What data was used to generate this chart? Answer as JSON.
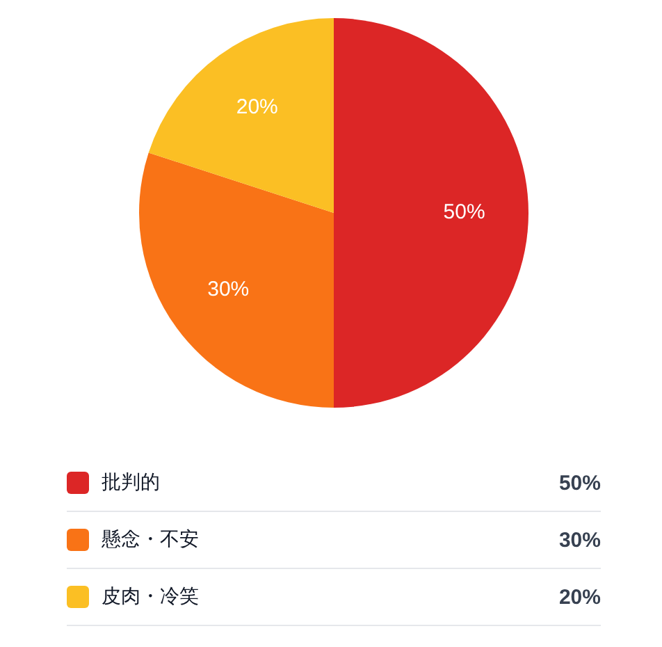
{
  "chart_data": {
    "type": "pie",
    "categories": [
      "批判的",
      "懸念・不安",
      "皮肉・冷笑"
    ],
    "values": [
      50,
      30,
      20
    ],
    "colors": [
      "#dc2626",
      "#f97316",
      "#fbbf24"
    ],
    "value_labels": [
      "50%",
      "30%",
      "20%"
    ],
    "legend": "bottom"
  }
}
